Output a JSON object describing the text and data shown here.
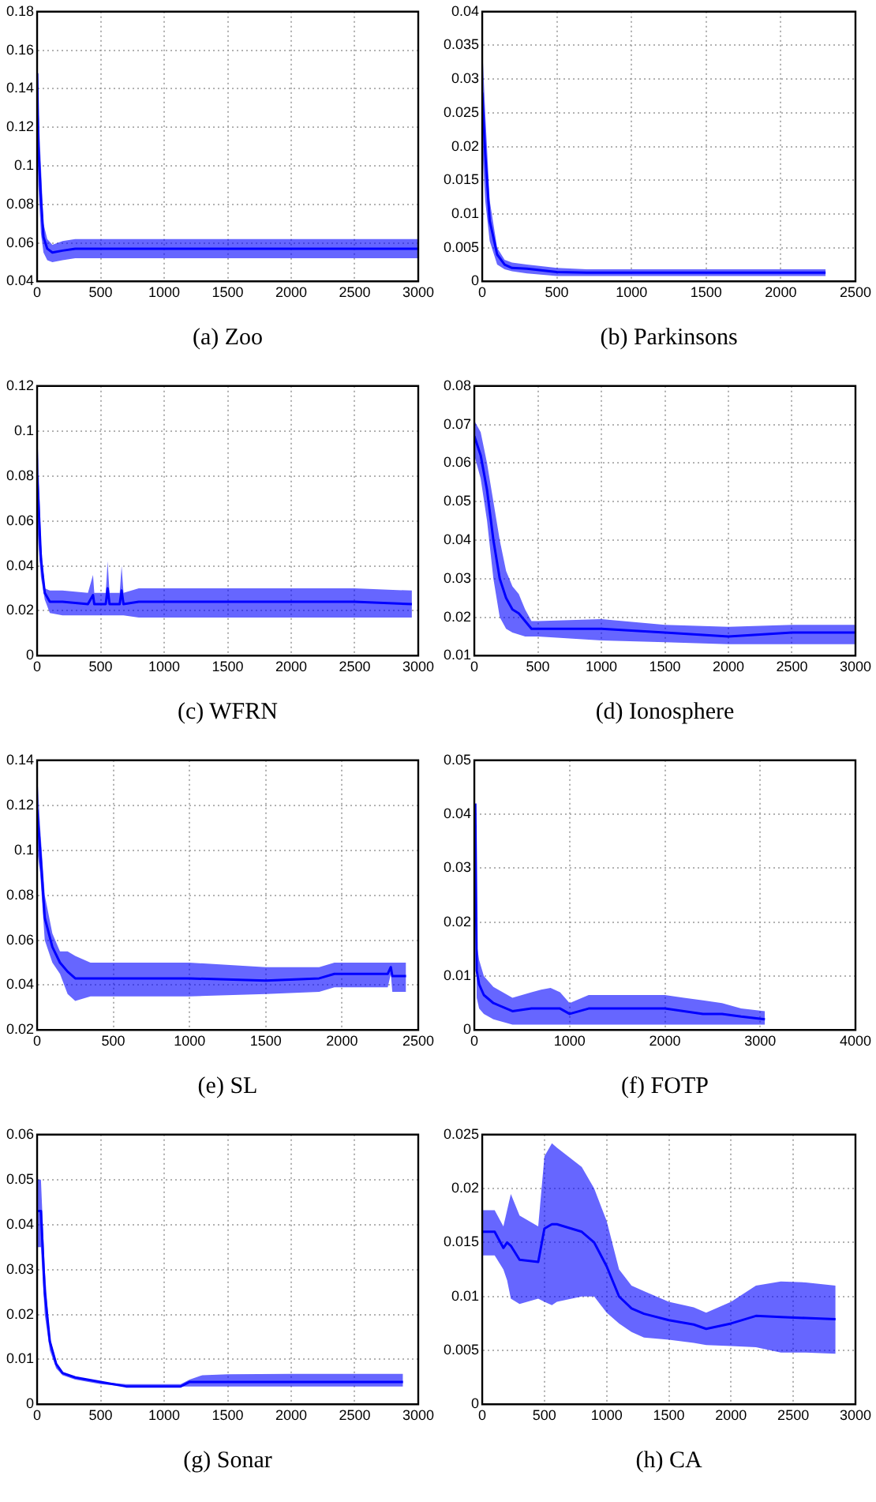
{
  "chart_data": [
    {
      "type": "line",
      "xlabel": "(a) Zoo",
      "xlim": [
        0,
        3000
      ],
      "xticks": [
        0,
        500,
        1000,
        1500,
        2000,
        2500,
        3000
      ],
      "ylim": [
        0.04,
        0.18
      ],
      "yticks": [
        0.04,
        0.06,
        0.08,
        0.1,
        0.12,
        0.14,
        0.16,
        0.18
      ],
      "grid": true,
      "line_style": "solid",
      "series": [
        {
          "color": "#0000ff",
          "x": [
            0,
            10,
            30,
            50,
            80,
            120,
            200,
            300,
            500,
            1000,
            2000,
            3000
          ],
          "values": [
            0.148,
            0.11,
            0.083,
            0.063,
            0.057,
            0.055,
            0.056,
            0.057,
            0.057,
            0.057,
            0.057,
            0.057
          ],
          "lower": [
            0.12,
            0.09,
            0.065,
            0.055,
            0.051,
            0.05,
            0.051,
            0.052,
            0.052,
            0.052,
            0.052,
            0.052
          ],
          "upper": [
            0.175,
            0.13,
            0.1,
            0.07,
            0.062,
            0.059,
            0.061,
            0.062,
            0.062,
            0.062,
            0.062,
            0.062
          ]
        }
      ]
    },
    {
      "type": "line",
      "xlabel": "(b) Parkinsons",
      "xlim": [
        0,
        2500
      ],
      "xticks": [
        0,
        500,
        1000,
        1500,
        2000,
        2500
      ],
      "ylim": [
        0,
        0.04
      ],
      "yticks": [
        0,
        0.005,
        0.01,
        0.015,
        0.02,
        0.025,
        0.03,
        0.035,
        0.04
      ],
      "grid": true,
      "line_style": "solid",
      "series": [
        {
          "color": "#0000ff",
          "x": [
            0,
            20,
            50,
            100,
            150,
            200,
            300,
            500,
            700,
            1000,
            2300
          ],
          "values": [
            0.028,
            0.019,
            0.009,
            0.004,
            0.0025,
            0.002,
            0.0019,
            0.0014,
            0.0013,
            0.0013,
            0.0013
          ],
          "lower": [
            0.02,
            0.012,
            0.006,
            0.0025,
            0.0018,
            0.0015,
            0.0012,
            0.0008,
            0.0008,
            0.0008,
            0.0008
          ],
          "upper": [
            0.035,
            0.025,
            0.012,
            0.005,
            0.0032,
            0.0028,
            0.0025,
            0.002,
            0.0018,
            0.0018,
            0.0018
          ]
        }
      ]
    },
    {
      "type": "line",
      "xlabel": "(c) WFRN",
      "xlim": [
        0,
        3000
      ],
      "xticks": [
        0,
        500,
        1000,
        1500,
        2000,
        2500,
        3000
      ],
      "ylim": [
        0,
        0.12
      ],
      "yticks": [
        0,
        0.02,
        0.04,
        0.06,
        0.08,
        0.1,
        0.12
      ],
      "grid": true,
      "line_style": "solid",
      "series": [
        {
          "color": "#0000ff",
          "x": [
            0,
            10,
            30,
            60,
            100,
            200,
            400,
            440,
            450,
            540,
            555,
            570,
            650,
            665,
            680,
            800,
            1000,
            1500,
            2000,
            2500,
            2950
          ],
          "values": [
            0.08,
            0.069,
            0.043,
            0.028,
            0.024,
            0.024,
            0.023,
            0.027,
            0.023,
            0.023,
            0.03,
            0.023,
            0.023,
            0.029,
            0.023,
            0.024,
            0.024,
            0.024,
            0.024,
            0.024,
            0.023
          ],
          "lower": [
            0.06,
            0.05,
            0.035,
            0.025,
            0.019,
            0.018,
            0.018,
            0.018,
            0.018,
            0.018,
            0.018,
            0.018,
            0.018,
            0.018,
            0.018,
            0.017,
            0.017,
            0.017,
            0.017,
            0.017,
            0.017
          ],
          "upper": [
            0.1,
            0.087,
            0.05,
            0.03,
            0.029,
            0.029,
            0.028,
            0.036,
            0.028,
            0.028,
            0.042,
            0.028,
            0.028,
            0.04,
            0.028,
            0.03,
            0.03,
            0.03,
            0.03,
            0.03,
            0.029
          ]
        }
      ]
    },
    {
      "type": "line",
      "xlabel": "(d) Ionosphere",
      "xlim": [
        0,
        3000
      ],
      "xticks": [
        0,
        500,
        1000,
        1500,
        2000,
        2500,
        3000
      ],
      "ylim": [
        0.01,
        0.08
      ],
      "yticks": [
        0.01,
        0.02,
        0.03,
        0.04,
        0.05,
        0.06,
        0.07,
        0.08
      ],
      "grid": true,
      "line_style": "solid",
      "series": [
        {
          "color": "#0000ff",
          "x": [
            0,
            50,
            100,
            150,
            200,
            250,
            300,
            350,
            400,
            450,
            500,
            1000,
            1500,
            2000,
            2500,
            3000
          ],
          "values": [
            0.067,
            0.062,
            0.053,
            0.04,
            0.03,
            0.025,
            0.022,
            0.021,
            0.019,
            0.017,
            0.017,
            0.017,
            0.016,
            0.015,
            0.016,
            0.016
          ],
          "lower": [
            0.062,
            0.056,
            0.045,
            0.03,
            0.02,
            0.017,
            0.016,
            0.0155,
            0.015,
            0.015,
            0.015,
            0.014,
            0.0135,
            0.013,
            0.013,
            0.013
          ],
          "upper": [
            0.071,
            0.068,
            0.06,
            0.05,
            0.04,
            0.032,
            0.028,
            0.026,
            0.022,
            0.019,
            0.019,
            0.0195,
            0.018,
            0.0175,
            0.018,
            0.018
          ]
        }
      ]
    },
    {
      "type": "line",
      "xlabel": "(e) SL",
      "xlim": [
        0,
        2500
      ],
      "xticks": [
        0,
        500,
        1000,
        1500,
        2000,
        2500
      ],
      "ylim": [
        0.02,
        0.14
      ],
      "yticks": [
        0.02,
        0.04,
        0.06,
        0.08,
        0.1,
        0.12,
        0.14
      ],
      "grid": true,
      "line_style": "solid",
      "series": [
        {
          "color": "#0000ff",
          "x": [
            0,
            20,
            50,
            100,
            150,
            200,
            250,
            350,
            500,
            1000,
            1500,
            1850,
            1950,
            2300,
            2320,
            2330,
            2420
          ],
          "values": [
            0.118,
            0.1,
            0.07,
            0.057,
            0.05,
            0.046,
            0.043,
            0.043,
            0.043,
            0.043,
            0.042,
            0.043,
            0.045,
            0.045,
            0.048,
            0.044,
            0.044
          ],
          "lower": [
            0.1,
            0.09,
            0.06,
            0.05,
            0.045,
            0.036,
            0.033,
            0.035,
            0.035,
            0.035,
            0.036,
            0.037,
            0.039,
            0.039,
            0.045,
            0.037,
            0.037
          ],
          "upper": [
            0.135,
            0.11,
            0.08,
            0.063,
            0.055,
            0.055,
            0.053,
            0.05,
            0.05,
            0.05,
            0.048,
            0.048,
            0.05,
            0.05,
            0.05,
            0.05,
            0.05
          ]
        }
      ]
    },
    {
      "type": "line",
      "xlabel": "(f) FOTP",
      "xlim": [
        0,
        4000
      ],
      "xticks": [
        0,
        1000,
        2000,
        3000,
        4000
      ],
      "ylim": [
        0,
        0.05
      ],
      "yticks": [
        0,
        0.01,
        0.02,
        0.03,
        0.04,
        0.05
      ],
      "grid": true,
      "line_style": "solid",
      "series": [
        {
          "color": "#0000ff",
          "x": [
            10,
            25,
            50,
            100,
            200,
            400,
            600,
            700,
            800,
            900,
            1000,
            1200,
            1400,
            1600,
            1800,
            2000,
            2200,
            2400,
            2600,
            2800,
            3050
          ],
          "values": [
            0.042,
            0.011,
            0.0085,
            0.0065,
            0.005,
            0.0035,
            0.004,
            0.004,
            0.004,
            0.004,
            0.003,
            0.004,
            0.004,
            0.004,
            0.004,
            0.004,
            0.0035,
            0.003,
            0.003,
            0.0025,
            0.002
          ],
          "lower": [
            0.042,
            0.006,
            0.004,
            0.003,
            0.002,
            0.001,
            0.001,
            0.001,
            0.001,
            0.001,
            0.001,
            0.001,
            0.001,
            0.001,
            0.001,
            0.001,
            0.001,
            0.001,
            0.001,
            0.001,
            0.001
          ],
          "upper": [
            0.042,
            0.016,
            0.013,
            0.01,
            0.008,
            0.006,
            0.007,
            0.0075,
            0.0078,
            0.007,
            0.005,
            0.0065,
            0.0065,
            0.0065,
            0.0065,
            0.0065,
            0.006,
            0.0055,
            0.005,
            0.004,
            0.0035
          ]
        }
      ]
    },
    {
      "type": "line",
      "xlabel": "(g) Sonar",
      "xlim": [
        0,
        3000
      ],
      "xticks": [
        0,
        500,
        1000,
        1500,
        2000,
        2500,
        3000
      ],
      "ylim": [
        0,
        0.06
      ],
      "yticks": [
        0,
        0.01,
        0.02,
        0.03,
        0.04,
        0.05,
        0.06
      ],
      "grid": true,
      "line_style": "solid",
      "series": [
        {
          "color": "#0000ff",
          "x": [
            0,
            30,
            60,
            100,
            150,
            200,
            300,
            500,
            700,
            1000,
            1130,
            1200,
            1300,
            1500,
            2000,
            2500,
            2880
          ],
          "values": [
            0.043,
            0.043,
            0.025,
            0.014,
            0.009,
            0.007,
            0.006,
            0.005,
            0.004,
            0.004,
            0.004,
            0.005,
            0.005,
            0.005,
            0.005,
            0.005,
            0.005
          ],
          "lower": [
            0.035,
            0.035,
            0.02,
            0.012,
            0.008,
            0.0065,
            0.0055,
            0.0045,
            0.004,
            0.004,
            0.004,
            0.004,
            0.004,
            0.004,
            0.004,
            0.004,
            0.004
          ],
          "upper": [
            0.05,
            0.05,
            0.03,
            0.015,
            0.009,
            0.007,
            0.006,
            0.005,
            0.0045,
            0.0045,
            0.0045,
            0.0055,
            0.0065,
            0.0067,
            0.0068,
            0.0068,
            0.0068
          ]
        }
      ]
    },
    {
      "type": "line",
      "xlabel": "(h) CA",
      "xlim": [
        0,
        3000
      ],
      "xticks": [
        0,
        500,
        1000,
        1500,
        2000,
        2500,
        3000
      ],
      "ylim": [
        0,
        0.025
      ],
      "yticks": [
        0,
        0.005,
        0.01,
        0.015,
        0.02,
        0.025
      ],
      "grid": true,
      "line_style": "solid",
      "series": [
        {
          "color": "#0000ff",
          "x": [
            0,
            100,
            170,
            200,
            230,
            300,
            450,
            500,
            560,
            600,
            800,
            900,
            1000,
            1100,
            1200,
            1300,
            1500,
            1700,
            1800,
            2000,
            2200,
            2400,
            2600,
            2840
          ],
          "values": [
            0.016,
            0.016,
            0.0145,
            0.015,
            0.0147,
            0.0134,
            0.0132,
            0.0163,
            0.0167,
            0.0167,
            0.016,
            0.015,
            0.0128,
            0.01,
            0.0089,
            0.0084,
            0.0078,
            0.0074,
            0.007,
            0.0075,
            0.0082,
            0.0081,
            0.008,
            0.0079
          ],
          "lower": [
            0.0138,
            0.0138,
            0.0125,
            0.0115,
            0.0098,
            0.0093,
            0.0098,
            0.0095,
            0.0092,
            0.0095,
            0.01,
            0.01,
            0.0085,
            0.0075,
            0.0067,
            0.0062,
            0.006,
            0.0057,
            0.0055,
            0.0054,
            0.0053,
            0.0048,
            0.0048,
            0.0047
          ],
          "upper": [
            0.018,
            0.018,
            0.0165,
            0.018,
            0.0195,
            0.0175,
            0.0165,
            0.023,
            0.0242,
            0.0238,
            0.022,
            0.02,
            0.017,
            0.0125,
            0.011,
            0.0105,
            0.0095,
            0.009,
            0.0085,
            0.0095,
            0.011,
            0.0114,
            0.0113,
            0.011
          ]
        }
      ]
    }
  ]
}
